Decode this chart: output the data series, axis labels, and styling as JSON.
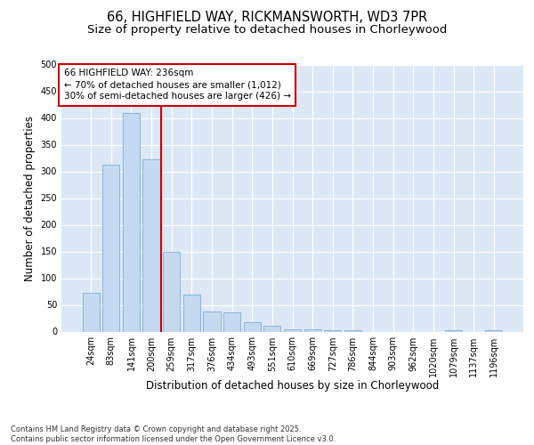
{
  "title_line1": "66, HIGHFIELD WAY, RICKMANSWORTH, WD3 7PR",
  "title_line2": "Size of property relative to detached houses in Chorleywood",
  "xlabel": "Distribution of detached houses by size in Chorleywood",
  "ylabel": "Number of detached properties",
  "categories": [
    "24sqm",
    "83sqm",
    "141sqm",
    "200sqm",
    "259sqm",
    "317sqm",
    "376sqm",
    "434sqm",
    "493sqm",
    "551sqm",
    "610sqm",
    "669sqm",
    "727sqm",
    "786sqm",
    "844sqm",
    "903sqm",
    "962sqm",
    "1020sqm",
    "1079sqm",
    "1137sqm",
    "1196sqm"
  ],
  "values": [
    72,
    312,
    410,
    323,
    150,
    70,
    37,
    36,
    18,
    11,
    5,
    5,
    3,
    2,
    0,
    0,
    0,
    0,
    2,
    0,
    2
  ],
  "bar_color": "#c5d9f0",
  "bar_edge_color": "#7bafd4",
  "vline_x_index": 3.5,
  "vline_color": "#cc0000",
  "annotation_line1": "66 HIGHFIELD WAY: 236sqm",
  "annotation_line2": "← 70% of detached houses are smaller (1,012)",
  "annotation_line3": "30% of semi-detached houses are larger (426) →",
  "annotation_box_color": "#cc0000",
  "ylim": [
    0,
    500
  ],
  "yticks": [
    0,
    50,
    100,
    150,
    200,
    250,
    300,
    350,
    400,
    450,
    500
  ],
  "footer_text": "Contains HM Land Registry data © Crown copyright and database right 2025.\nContains public sector information licensed under the Open Government Licence v3.0.",
  "background_color": "#ffffff",
  "plot_bg_color": "#dce8f5",
  "grid_color": "#ffffff",
  "title_fontsize": 10.5,
  "subtitle_fontsize": 9.5,
  "axis_label_fontsize": 8.5,
  "tick_fontsize": 7,
  "footer_fontsize": 6,
  "annotation_fontsize": 7.5
}
